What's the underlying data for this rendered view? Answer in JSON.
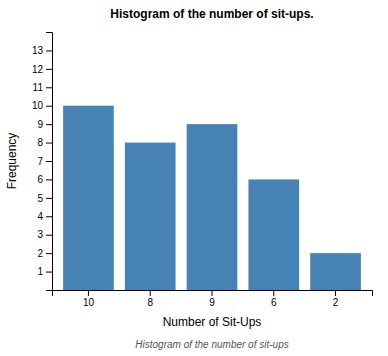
{
  "chart_data": {
    "type": "bar",
    "title": "Histogram of the number of sit-ups.",
    "subtitle": "Histogram of the number of sit-ups",
    "x_label": "Number of Sit-Ups",
    "y_label": "Frequency",
    "categories": [
      "10",
      "8",
      "9",
      "6",
      "2"
    ],
    "values": [
      10,
      8,
      9,
      6,
      2
    ],
    "ylim": [
      0,
      14
    ],
    "yticks": [
      1,
      2,
      3,
      4,
      5,
      6,
      7,
      8,
      9,
      10,
      11,
      12,
      13
    ]
  }
}
